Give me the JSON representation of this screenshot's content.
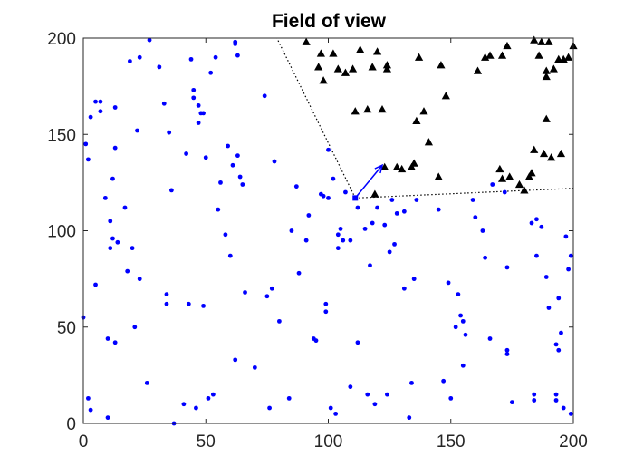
{
  "chart_data": {
    "type": "scatter",
    "title": "Field of view",
    "xlim": [
      0,
      200
    ],
    "ylim": [
      0,
      200
    ],
    "xticks": [
      0,
      50,
      100,
      150,
      200
    ],
    "yticks": [
      0,
      50,
      100,
      150,
      200
    ],
    "grid": false,
    "colors": {
      "points": "#0000ff",
      "targets": "#000000",
      "arrow": "#0000ff",
      "fov": "#000000"
    },
    "observer": {
      "x": 111,
      "y": 117
    },
    "heading": {
      "x": 122,
      "y": 134
    },
    "fov_rays": [
      {
        "from": [
          111,
          117
        ],
        "to": [
          79,
          200
        ]
      },
      {
        "from": [
          111,
          117
        ],
        "to": [
          200,
          122
        ]
      }
    ],
    "series": [
      {
        "marker": "dot",
        "points": [
          [
            0,
            55
          ],
          [
            1,
            145
          ],
          [
            2,
            137
          ],
          [
            2,
            13
          ],
          [
            3,
            7
          ],
          [
            3,
            159
          ],
          [
            5,
            72
          ],
          [
            5,
            167
          ],
          [
            7,
            167
          ],
          [
            7,
            162
          ],
          [
            9,
            117
          ],
          [
            10,
            44
          ],
          [
            10,
            3
          ],
          [
            11,
            105
          ],
          [
            11,
            91
          ],
          [
            12,
            127
          ],
          [
            12,
            96
          ],
          [
            13,
            42
          ],
          [
            13,
            164
          ],
          [
            13,
            143
          ],
          [
            14,
            94
          ],
          [
            17,
            112
          ],
          [
            18,
            79
          ],
          [
            19,
            188
          ],
          [
            20,
            91
          ],
          [
            21,
            50
          ],
          [
            22,
            152
          ],
          [
            23,
            75
          ],
          [
            23,
            190
          ],
          [
            26,
            21
          ],
          [
            27,
            199
          ],
          [
            31,
            185
          ],
          [
            33,
            166
          ],
          [
            34,
            62
          ],
          [
            34,
            67
          ],
          [
            35,
            151
          ],
          [
            36,
            121
          ],
          [
            37,
            0
          ],
          [
            41,
            10
          ],
          [
            42,
            140
          ],
          [
            43,
            62
          ],
          [
            44,
            189
          ],
          [
            45,
            169
          ],
          [
            45,
            173
          ],
          [
            46,
            8
          ],
          [
            47,
            165
          ],
          [
            47,
            156
          ],
          [
            48,
            161
          ],
          [
            49,
            161
          ],
          [
            49,
            61
          ],
          [
            50,
            138
          ],
          [
            51,
            13
          ],
          [
            52,
            182
          ],
          [
            53,
            15
          ],
          [
            54,
            190
          ],
          [
            55,
            111
          ],
          [
            56,
            125
          ],
          [
            58,
            98
          ],
          [
            59,
            144
          ],
          [
            60,
            87
          ],
          [
            61,
            134
          ],
          [
            62,
            33
          ],
          [
            62,
            197
          ],
          [
            62,
            198
          ],
          [
            63,
            139
          ],
          [
            63,
            191
          ],
          [
            64,
            128
          ],
          [
            65,
            124
          ],
          [
            66,
            68
          ],
          [
            70,
            29
          ],
          [
            74,
            170
          ],
          [
            75,
            66
          ],
          [
            76,
            8
          ],
          [
            77,
            70
          ],
          [
            78,
            136
          ],
          [
            80,
            53
          ],
          [
            84,
            13
          ],
          [
            85,
            100
          ],
          [
            87,
            123
          ],
          [
            88,
            78
          ],
          [
            91,
            95
          ],
          [
            92,
            108
          ],
          [
            94,
            44
          ],
          [
            95,
            43
          ],
          [
            97,
            119
          ],
          [
            98,
            118
          ],
          [
            99,
            62
          ],
          [
            99,
            58
          ],
          [
            100,
            117
          ],
          [
            100,
            142
          ],
          [
            101,
            8
          ],
          [
            102,
            127
          ],
          [
            103,
            5
          ],
          [
            104,
            98
          ],
          [
            104,
            91
          ],
          [
            105,
            101
          ],
          [
            106,
            95
          ],
          [
            107,
            120
          ],
          [
            109,
            19
          ],
          [
            109,
            95
          ],
          [
            111,
            117
          ],
          [
            112,
            112
          ],
          [
            112,
            42
          ],
          [
            115,
            101
          ],
          [
            116,
            15
          ],
          [
            117,
            82
          ],
          [
            118,
            104
          ],
          [
            119,
            10
          ],
          [
            120,
            112
          ],
          [
            123,
            103
          ],
          [
            124,
            15
          ],
          [
            125,
            89
          ],
          [
            126,
            116
          ],
          [
            127,
            93
          ],
          [
            128,
            109
          ],
          [
            131,
            70
          ],
          [
            131,
            110
          ],
          [
            133,
            3
          ],
          [
            134,
            21
          ],
          [
            135,
            75
          ],
          [
            136,
            116
          ],
          [
            145,
            111
          ],
          [
            147,
            22
          ],
          [
            149,
            73
          ],
          [
            150,
            13
          ],
          [
            152,
            50
          ],
          [
            153,
            67
          ],
          [
            154,
            56
          ],
          [
            155,
            30
          ],
          [
            155,
            53
          ],
          [
            156,
            46
          ],
          [
            159,
            116
          ],
          [
            160,
            107
          ],
          [
            163,
            100
          ],
          [
            164,
            86
          ],
          [
            166,
            44
          ],
          [
            167,
            124
          ],
          [
            172,
            120
          ],
          [
            173,
            81
          ],
          [
            173,
            38
          ],
          [
            173,
            36
          ],
          [
            175,
            11
          ],
          [
            183,
            104
          ],
          [
            184,
            15
          ],
          [
            184,
            12
          ],
          [
            185,
            106
          ],
          [
            185,
            87
          ],
          [
            187,
            102
          ],
          [
            189,
            76
          ],
          [
            190,
            60
          ],
          [
            193,
            15
          ],
          [
            193,
            12
          ],
          [
            193,
            41
          ],
          [
            194,
            38
          ],
          [
            194,
            65
          ],
          [
            195,
            47
          ],
          [
            196,
            8
          ],
          [
            197,
            97
          ],
          [
            198,
            80
          ],
          [
            199,
            87
          ],
          [
            199,
            5
          ]
        ]
      },
      {
        "marker": "triangle",
        "points": [
          [
            91,
            198
          ],
          [
            96,
            185
          ],
          [
            97,
            192
          ],
          [
            98,
            178
          ],
          [
            102,
            192
          ],
          [
            104,
            184
          ],
          [
            107,
            182
          ],
          [
            110,
            184
          ],
          [
            113,
            194
          ],
          [
            118,
            185
          ],
          [
            111,
            162
          ],
          [
            116,
            163
          ],
          [
            122,
            163
          ],
          [
            120,
            193
          ],
          [
            124,
            186
          ],
          [
            137,
            190
          ],
          [
            139,
            162
          ],
          [
            146,
            186
          ],
          [
            134,
            133
          ],
          [
            135,
            135
          ],
          [
            136,
            157
          ],
          [
            141,
            146
          ],
          [
            145,
            128
          ],
          [
            148,
            170
          ],
          [
            161,
            183
          ],
          [
            164,
            190
          ],
          [
            166,
            191
          ],
          [
            171,
            191
          ],
          [
            173,
            196
          ],
          [
            178,
            124
          ],
          [
            182,
            128
          ],
          [
            184,
            199
          ],
          [
            186,
            191
          ],
          [
            187,
            198
          ],
          [
            189,
            180
          ],
          [
            189,
            183
          ],
          [
            190,
            198
          ],
          [
            192,
            184
          ],
          [
            194,
            189
          ],
          [
            196,
            189
          ],
          [
            198,
            190
          ],
          [
            200,
            196
          ],
          [
            184,
            142
          ],
          [
            188,
            140
          ],
          [
            191,
            138
          ],
          [
            195,
            140
          ],
          [
            183,
            130
          ],
          [
            189,
            158
          ],
          [
            180,
            121
          ],
          [
            130,
            132
          ],
          [
            123,
            133
          ],
          [
            119,
            119
          ],
          [
            174,
            128
          ],
          [
            171,
            127
          ],
          [
            170,
            132
          ],
          [
            124,
            184
          ],
          [
            128,
            133
          ]
        ]
      }
    ]
  }
}
